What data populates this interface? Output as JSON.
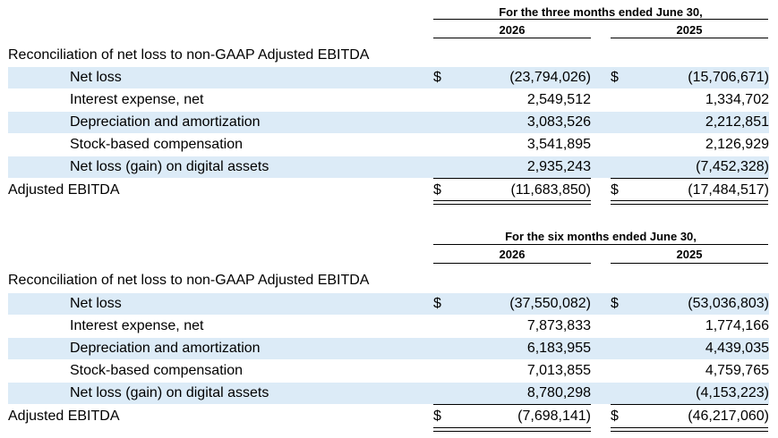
{
  "sections": [
    {
      "period_title": "For the three months ended June 30,",
      "year_current": "2026",
      "year_prior": "2025",
      "heading": "Reconciliation of net loss to non-GAAP Adjusted EBITDA",
      "rows": [
        {
          "label": "Net loss",
          "dollar": "$",
          "current": "(23,794,026)",
          "prior": "(15,706,671)"
        },
        {
          "label": "Interest expense, net",
          "current": "2,549,512",
          "prior": "1,334,702"
        },
        {
          "label": "Depreciation and amortization",
          "current": "3,083,526",
          "prior": "2,212,851"
        },
        {
          "label": "Stock-based compensation",
          "current": "3,541,895",
          "prior": "2,126,929"
        },
        {
          "label": "Net loss (gain) on digital assets",
          "current": "2,935,243",
          "prior": "(7,452,328)"
        }
      ],
      "total": {
        "label": "Adjusted EBITDA",
        "dollar": "$",
        "current": "(11,683,850)",
        "prior": "(17,484,517)"
      }
    },
    {
      "period_title": "For the six months ended June 30,",
      "year_current": "2026",
      "year_prior": "2025",
      "heading": "Reconciliation of net loss to non-GAAP Adjusted EBITDA",
      "rows": [
        {
          "label": "Net loss",
          "dollar": "$",
          "current": "(37,550,082)",
          "prior": "(53,036,803)"
        },
        {
          "label": "Interest expense, net",
          "current": "7,873,833",
          "prior": "1,774,166"
        },
        {
          "label": "Depreciation and amortization",
          "current": "6,183,955",
          "prior": "4,439,035"
        },
        {
          "label": "Stock-based compensation",
          "current": "7,013,855",
          "prior": "4,759,765"
        },
        {
          "label": "Net loss (gain) on digital assets",
          "current": "8,780,298",
          "prior": "(4,153,223)"
        }
      ],
      "total": {
        "label": "Adjusted EBITDA",
        "dollar": "$",
        "current": "(7,698,141)",
        "prior": "(46,217,060)"
      }
    }
  ],
  "colors": {
    "row_shade": "#dcebf7"
  }
}
